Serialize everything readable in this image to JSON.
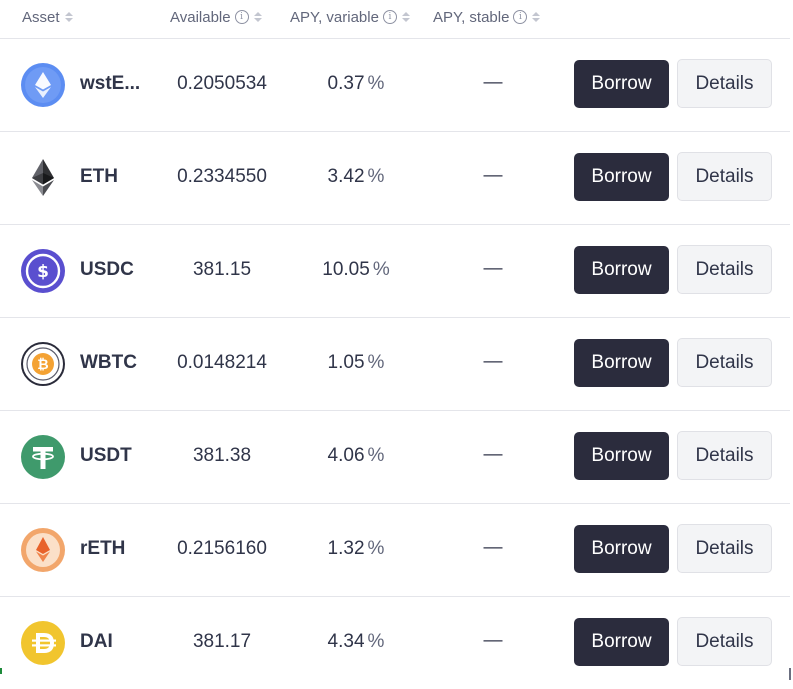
{
  "header": {
    "asset": "Asset",
    "available": "Available",
    "apy_variable": "APY, variable",
    "apy_stable": "APY, stable",
    "info_icon": "info-icon",
    "sort_icon": "sort-icon"
  },
  "rows": [
    {
      "name": "wstE...",
      "icon": "wsteth-icon",
      "available": "0.2050534",
      "apy_variable": "0.37",
      "apy_stable": "—",
      "borrow": "Borrow",
      "details": "Details"
    },
    {
      "name": "ETH",
      "icon": "eth-icon",
      "available": "0.2334550",
      "apy_variable": "3.42",
      "apy_stable": "—",
      "borrow": "Borrow",
      "details": "Details"
    },
    {
      "name": "USDC",
      "icon": "usdc-icon",
      "available": "381.15",
      "apy_variable": "10.05",
      "apy_stable": "—",
      "borrow": "Borrow",
      "details": "Details"
    },
    {
      "name": "WBTC",
      "icon": "wbtc-icon",
      "available": "0.0148214",
      "apy_variable": "1.05",
      "apy_stable": "—",
      "borrow": "Borrow",
      "details": "Details"
    },
    {
      "name": "USDT",
      "icon": "usdt-icon",
      "available": "381.38",
      "apy_variable": "4.06",
      "apy_stable": "—",
      "borrow": "Borrow",
      "details": "Details"
    },
    {
      "name": "rETH",
      "icon": "reth-icon",
      "available": "0.2156160",
      "apy_variable": "1.32",
      "apy_stable": "—",
      "borrow": "Borrow",
      "details": "Details"
    },
    {
      "name": "DAI",
      "icon": "dai-icon",
      "available": "381.17",
      "apy_variable": "4.34",
      "apy_stable": "—",
      "borrow": "Borrow",
      "details": "Details"
    }
  ],
  "percent_sign": "%",
  "colors": {
    "borrow_button": "#2b2c3d",
    "details_button": "#f3f4f6",
    "text_primary": "#303549",
    "text_secondary": "#62677b"
  }
}
